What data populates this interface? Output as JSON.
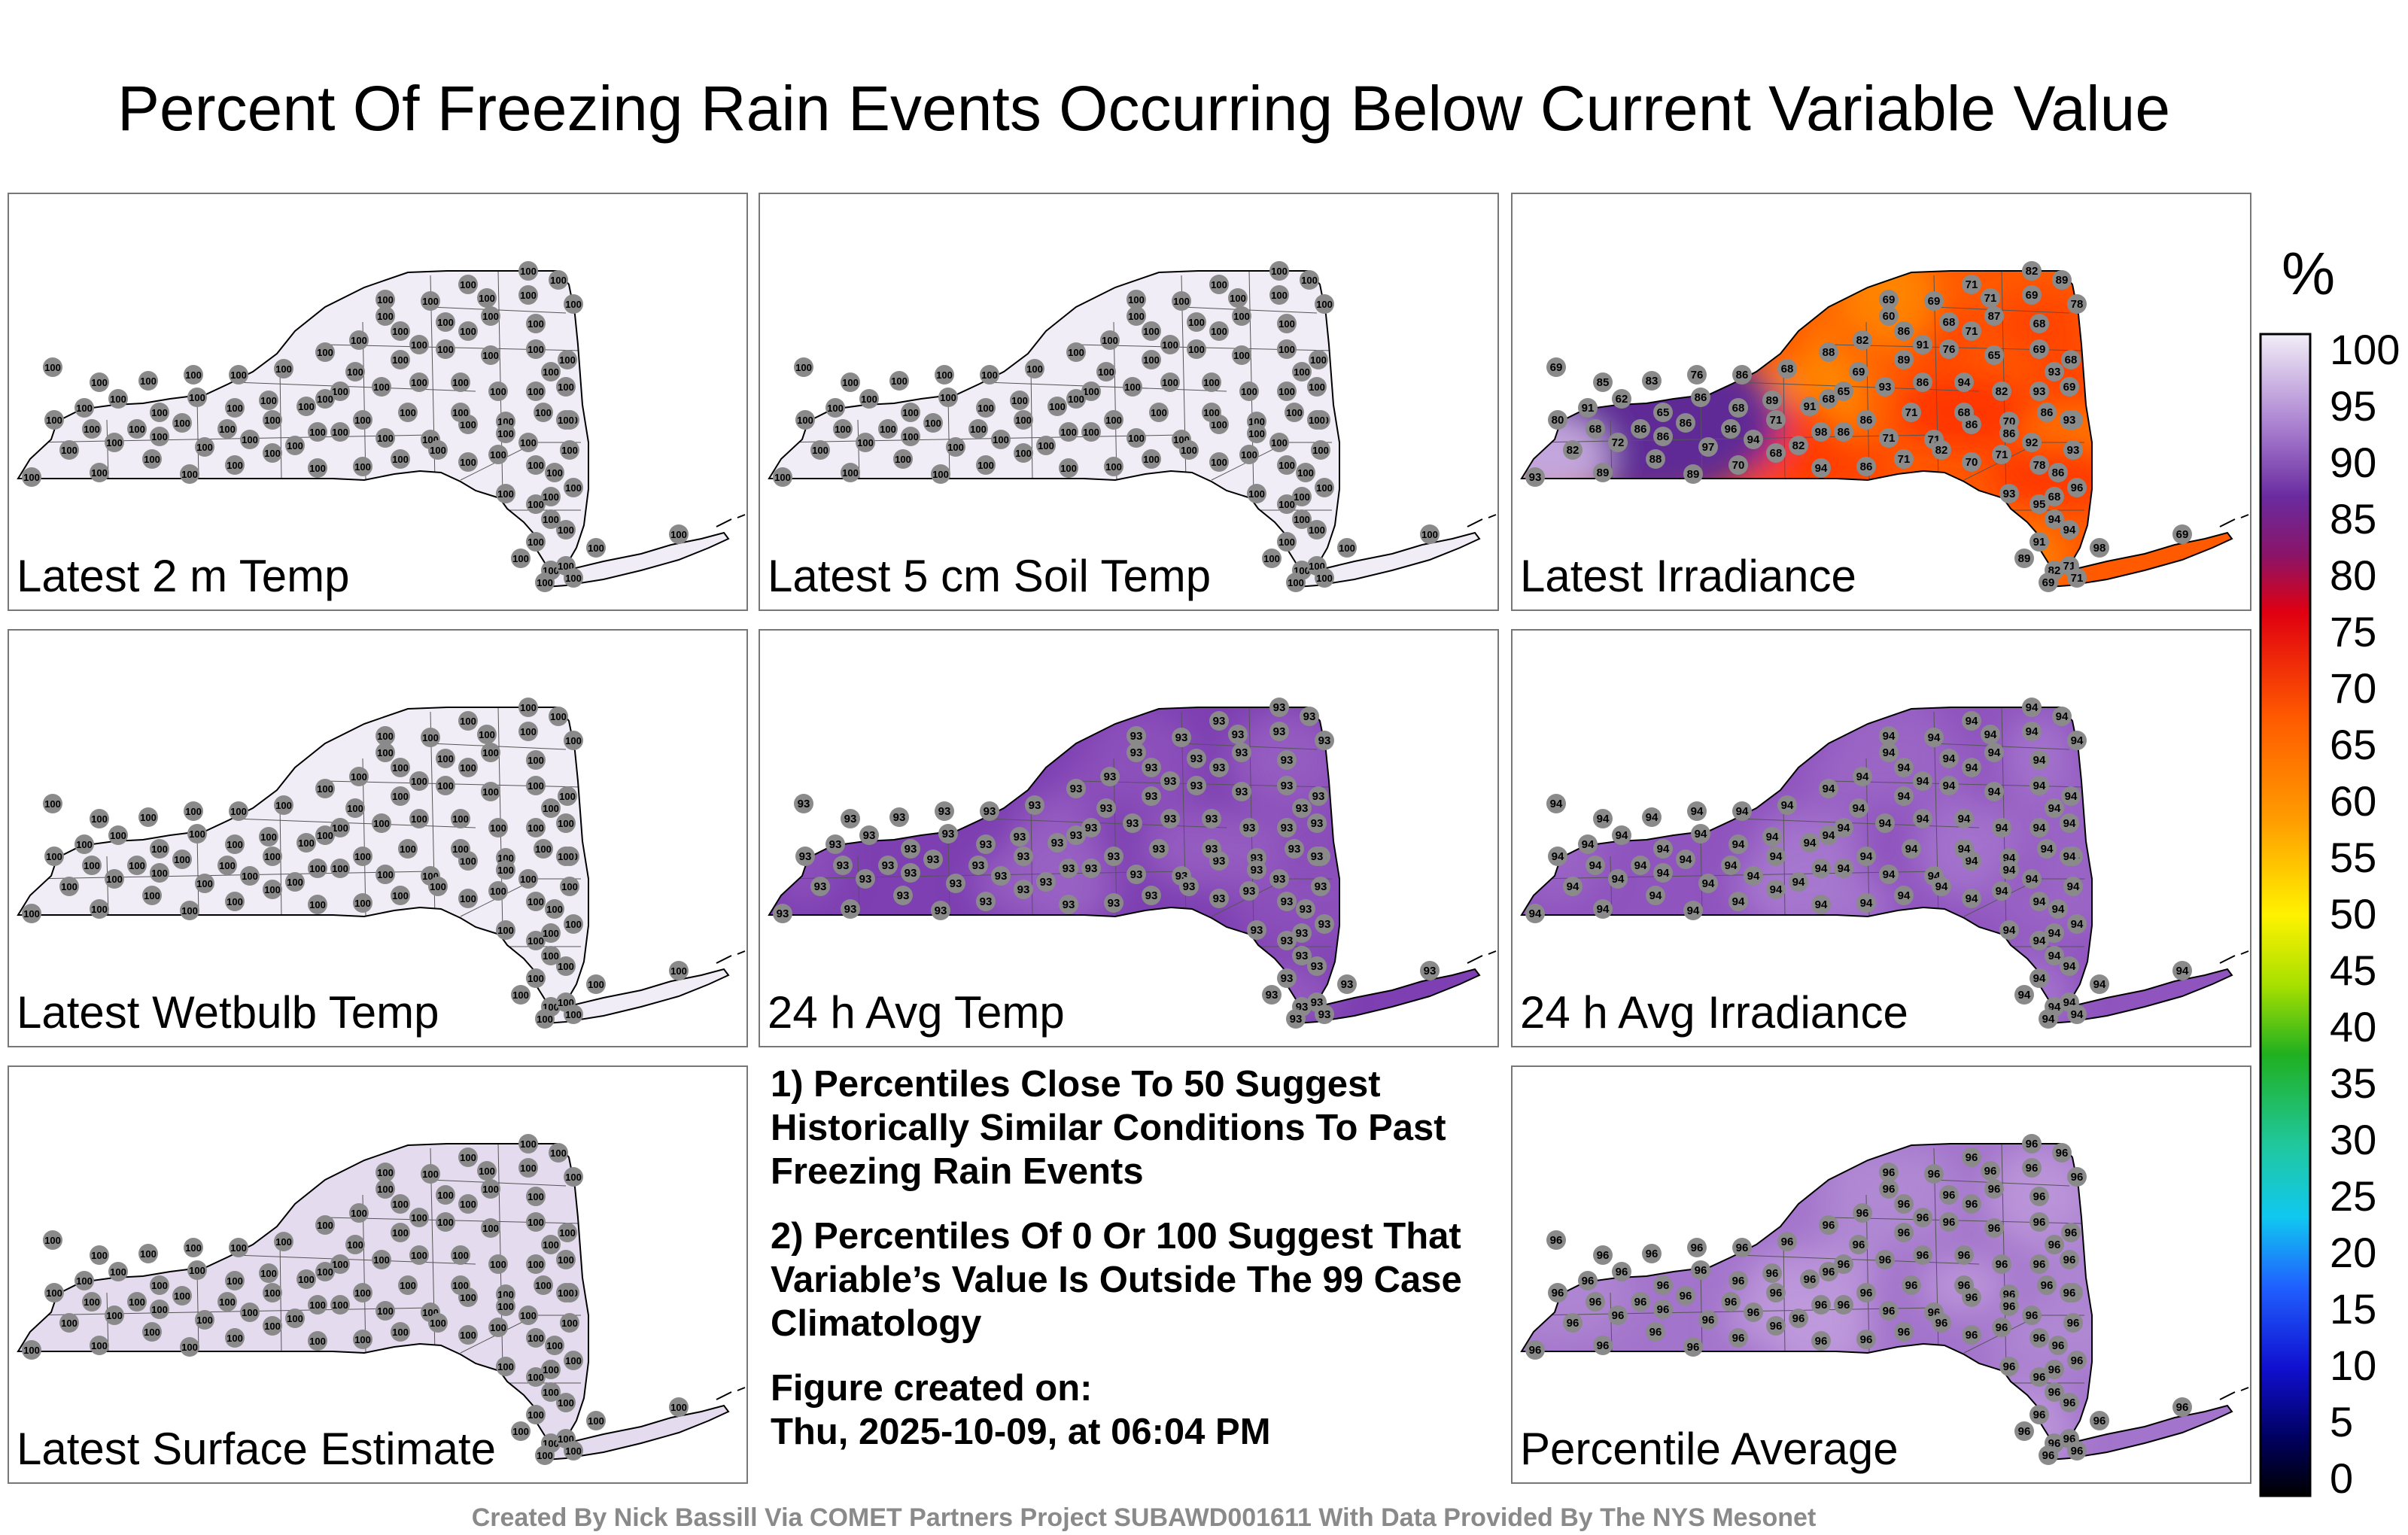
{
  "title": "Percent Of Freezing Rain Events Occurring Below Current Variable Value",
  "colorbar": {
    "unit": "%",
    "ticks": [
      "100",
      "95",
      "90",
      "85",
      "80",
      "75",
      "70",
      "65",
      "60",
      "55",
      "50",
      "45",
      "40",
      "35",
      "30",
      "25",
      "20",
      "15",
      "10",
      "5",
      "0"
    ]
  },
  "panels": [
    {
      "label": "Latest 2 m Temp",
      "fill": "#f1edf6",
      "stations": "uniform",
      "value": "100",
      "haze": []
    },
    {
      "label": "Latest 5 cm Soil Temp",
      "fill": "#f1edf6",
      "stations": "uniform",
      "value": "100",
      "haze": []
    },
    {
      "label": "Latest Irradiance",
      "fill": "#ff5a00",
      "stations": "irradiance",
      "haze": [
        "#ff2a00",
        "#ff9000",
        "#ff3e00"
      ]
    },
    {
      "label": "Latest Wetbulb Temp",
      "fill": "#f1edf6",
      "stations": "uniform",
      "value": "100",
      "haze": []
    },
    {
      "label": "24 h Avg Temp",
      "fill": "#7d3fb1",
      "stations": "uniform",
      "value": "93",
      "haze": [
        "#9a63c4",
        "#8d51bb"
      ]
    },
    {
      "label": "24 h Avg Irradiance",
      "fill": "#8f54be",
      "stations": "uniform",
      "value": "94",
      "haze": [
        "#a879cf",
        "#9b66c6"
      ]
    },
    {
      "label": "Latest Surface Estimate",
      "fill": "#e5dbee",
      "stations": "uniform",
      "value": "100",
      "haze": []
    },
    {
      "label": "Percentile Average",
      "fill": "#a374cb",
      "stations": "uniform",
      "value": "96",
      "haze": [
        "#bf9bdc",
        "#b089d3"
      ]
    }
  ],
  "notes": [
    "1) Percentiles Close To 50 Suggest Historically Similar Conditions To Past Freezing Rain Events",
    "2) Percentiles Of 0 Or 100 Suggest That Variable’s Value Is Outside The 99 Case Climatology"
  ],
  "figure_created": {
    "label": "Figure created on:",
    "date": "Thu, 2025-10-09, at 06:04 PM"
  },
  "credit": "Created By Nick Bassill Via COMET Partners Project SUBAWD001611 With Data Provided By The NYS Mesonet",
  "irradiance_values": [
    "69",
    "85",
    "83",
    "76",
    "86",
    "68",
    "88",
    "82",
    "60",
    "69",
    "71",
    "82",
    "89",
    "87",
    "68",
    "78",
    "89",
    "76",
    "65",
    "69",
    "68",
    "80",
    "91",
    "62",
    "65",
    "86",
    "68",
    "89",
    "91",
    "65",
    "93",
    "86",
    "94",
    "82",
    "93",
    "69",
    "86",
    "82",
    "72",
    "86",
    "97",
    "94",
    "82",
    "86",
    "71",
    "71",
    "86",
    "70",
    "86",
    "93",
    "93",
    "89",
    "88",
    "89",
    "70",
    "68",
    "94",
    "86",
    "71",
    "82",
    "70",
    "71",
    "92",
    "86",
    "96",
    "93",
    "95",
    "94",
    "94",
    "91",
    "89",
    "82",
    "71",
    "71",
    "69",
    "98",
    "69",
    "86",
    "68",
    "71",
    "69",
    "68",
    "86",
    "71",
    "68",
    "86",
    "78",
    "93",
    "93",
    "71",
    "91",
    "69",
    "69",
    "98",
    "71",
    "96",
    "86",
    "86",
    "68",
    "68"
  ]
}
